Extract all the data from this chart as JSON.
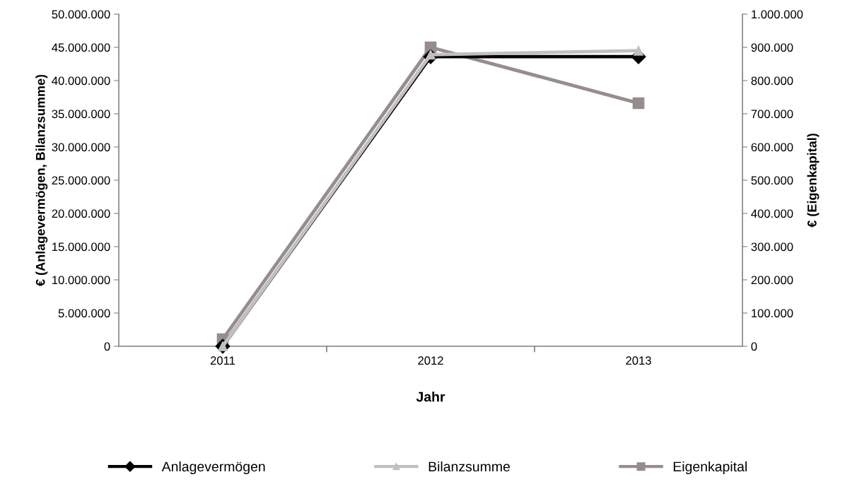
{
  "chart_data": {
    "type": "line",
    "xlabel": "Jahr",
    "ylabel": "€ (Anlagevermögen, Bilanzsumme)",
    "y2label": "€ (Eigenkapital)",
    "categories": [
      "2011",
      "2012",
      "2013"
    ],
    "series": [
      {
        "name": "Anlagevermögen",
        "color": "#000000",
        "marker": "diamond",
        "values": [
          0,
          43600000,
          43600000
        ]
      },
      {
        "name": "Bilanzsumme",
        "color": "#c0c0c0",
        "marker": "triangle",
        "values": [
          0,
          43900000,
          44500000
        ]
      },
      {
        "name": "Eigenkapital",
        "color": "#978d8d",
        "marker": "square",
        "axis": "y2",
        "values": [
          21000,
          900000,
          732000
        ]
      }
    ],
    "ylim": [
      0,
      50000000
    ],
    "yticks": [
      {
        "value": 0,
        "label": "0"
      },
      {
        "value": 5000000,
        "label": "5.000.000"
      },
      {
        "value": 10000000,
        "label": "10.000.000"
      },
      {
        "value": 15000000,
        "label": "15.000.000"
      },
      {
        "value": 20000000,
        "label": "20.000.000"
      },
      {
        "value": 25000000,
        "label": "25.000.000"
      },
      {
        "value": 30000000,
        "label": "30.000.000"
      },
      {
        "value": 35000000,
        "label": "35.000.000"
      },
      {
        "value": 40000000,
        "label": "40.000.000"
      },
      {
        "value": 45000000,
        "label": "45.000.000"
      },
      {
        "value": 50000000,
        "label": "50.000.000"
      }
    ],
    "y2lim": [
      0,
      1000000
    ],
    "y2ticks": [
      {
        "value": 0,
        "label": "0"
      },
      {
        "value": 100000,
        "label": "100.000"
      },
      {
        "value": 200000,
        "label": "200.000"
      },
      {
        "value": 300000,
        "label": "300.000"
      },
      {
        "value": 400000,
        "label": "400.000"
      },
      {
        "value": 500000,
        "label": "500.000"
      },
      {
        "value": 600000,
        "label": "600.000"
      },
      {
        "value": 700000,
        "label": "700.000"
      },
      {
        "value": 800000,
        "label": "800.000"
      },
      {
        "value": 900000,
        "label": "900.000"
      },
      {
        "value": 1000000,
        "label": "1.000.000"
      }
    ],
    "grid": false,
    "legend": "bottom",
    "line_style": "solid"
  }
}
